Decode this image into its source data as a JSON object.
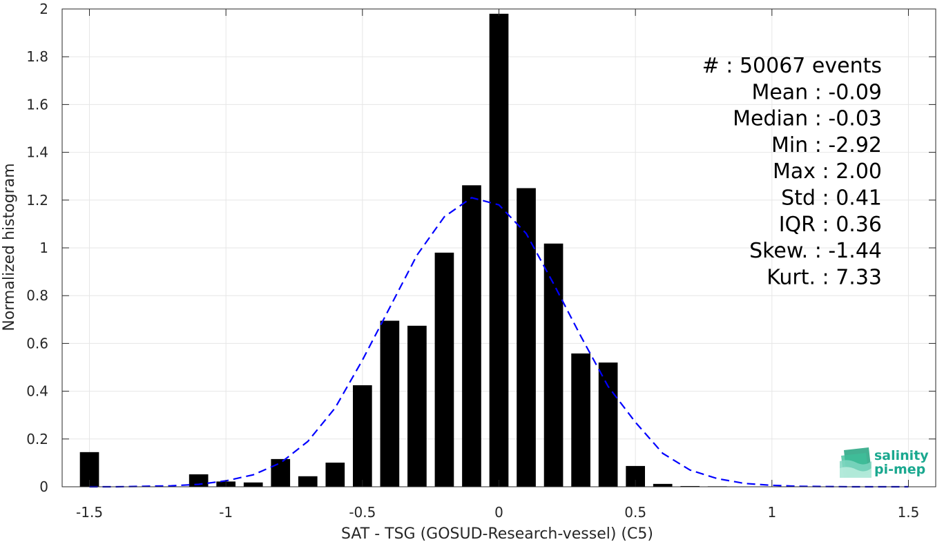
{
  "chart_data": {
    "type": "bar",
    "xlabel": "SAT - TSG (GOSUD-Research-vessel) (C5)",
    "ylabel": "Normalized histogram",
    "xlim": [
      -1.6,
      1.6
    ],
    "ylim": [
      0,
      2
    ],
    "xticks": [
      -1.5,
      -1,
      -0.5,
      0,
      0.5,
      1,
      1.5
    ],
    "xtick_labels": [
      "-1.5",
      "-1",
      "-0.5",
      "0",
      "0.5",
      "1",
      "1.5"
    ],
    "yticks": [
      0,
      0.2,
      0.4,
      0.6,
      0.8,
      1,
      1.2,
      1.4,
      1.6,
      1.8,
      2
    ],
    "ytick_labels": [
      "0",
      "0.2",
      "0.4",
      "0.6",
      "0.8",
      "1",
      "1.2",
      "1.4",
      "1.6",
      "1.8",
      "2"
    ],
    "grid": true,
    "bar_width": 0.07,
    "colors": {
      "bars": "#000000",
      "fit": "#0000ff",
      "grid": "#e6e6e6",
      "axis": "#262626"
    },
    "series": [
      {
        "kind": "bars",
        "x": [
          -1.5,
          -1.4,
          -1.3,
          -1.2,
          -1.1,
          -1.0,
          -0.9,
          -0.8,
          -0.7,
          -0.6,
          -0.5,
          -0.4,
          -0.3,
          -0.2,
          -0.1,
          0.0,
          0.1,
          0.2,
          0.3,
          0.4,
          0.5,
          0.6,
          0.7,
          0.8,
          0.9,
          1.0
        ],
        "values": [
          0.145,
          0,
          0,
          0,
          0.052,
          0.022,
          0.018,
          0.116,
          0.044,
          0.101,
          0.425,
          0.695,
          0.674,
          0.98,
          1.262,
          1.98,
          1.25,
          1.018,
          0.558,
          0.52,
          0.087,
          0.012,
          0.003,
          0.002,
          0.001,
          0.001
        ]
      },
      {
        "kind": "line",
        "style": "dashed",
        "x": [
          -1.5,
          -1.4,
          -1.3,
          -1.2,
          -1.1,
          -1.0,
          -0.9,
          -0.8,
          -0.7,
          -0.6,
          -0.5,
          -0.4,
          -0.3,
          -0.2,
          -0.1,
          0.0,
          0.1,
          0.2,
          0.3,
          0.4,
          0.5,
          0.6,
          0.7,
          0.8,
          0.9,
          1.0,
          1.1,
          1.2,
          1.3,
          1.4,
          1.5
        ],
        "values": [
          0.0,
          0.0,
          0.002,
          0.004,
          0.01,
          0.025,
          0.05,
          0.1,
          0.19,
          0.33,
          0.53,
          0.75,
          0.97,
          1.13,
          1.21,
          1.18,
          1.06,
          0.85,
          0.63,
          0.42,
          0.27,
          0.14,
          0.07,
          0.034,
          0.014,
          0.006,
          0.002,
          0.001,
          0.0,
          0.0,
          0.0
        ]
      }
    ],
    "annotations": [
      "#  : 50067 events",
      "Mean : -0.09",
      "Median : -0.03",
      "Min : -2.92",
      "Max : 2.00",
      "Std : 0.41",
      "IQR : 0.36",
      "Skew. : -1.44",
      "Kurt. : 7.33"
    ]
  },
  "logo": {
    "line1": "salinity",
    "line2": "pi-mep"
  }
}
